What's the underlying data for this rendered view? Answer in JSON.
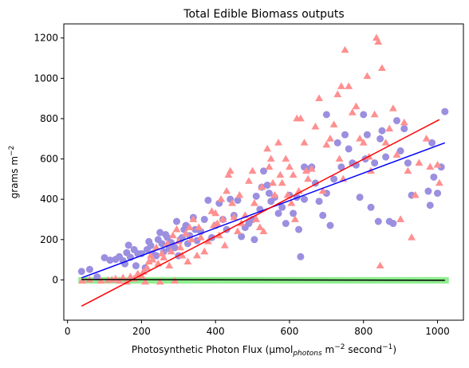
{
  "chart_data": {
    "type": "scatter",
    "title": "Total Edible Biomass outputs",
    "xlabel": {
      "prefix": "Photosynthetic Photon Flux (µmol",
      "sub": "photons",
      "mid": " m",
      "sup1": "−2",
      "mid2": " second",
      "sup2": "−1",
      "suffix": ")"
    },
    "ylabel": {
      "base": "grams m",
      "sup": "−2"
    },
    "xlim": [
      -10,
      1070
    ],
    "ylim": [
      -200,
      1270
    ],
    "xticks": [
      0,
      200,
      400,
      600,
      800,
      1000
    ],
    "yticks": [
      0,
      200,
      400,
      600,
      800,
      1000,
      1200
    ],
    "series": [
      {
        "marker": "circle",
        "color": "#9b8fe0",
        "points": [
          [
            38,
            42
          ],
          [
            60,
            52
          ],
          [
            80,
            15
          ],
          [
            100,
            110
          ],
          [
            115,
            98
          ],
          [
            130,
            102
          ],
          [
            140,
            115
          ],
          [
            150,
            95
          ],
          [
            155,
            80
          ],
          [
            160,
            135
          ],
          [
            165,
            172
          ],
          [
            170,
            112
          ],
          [
            180,
            150
          ],
          [
            185,
            70
          ],
          [
            190,
            130
          ],
          [
            200,
            130
          ],
          [
            210,
            60
          ],
          [
            215,
            150
          ],
          [
            220,
            190
          ],
          [
            225,
            170
          ],
          [
            230,
            130
          ],
          [
            240,
            120
          ],
          [
            245,
            200
          ],
          [
            250,
            235
          ],
          [
            255,
            180
          ],
          [
            260,
            140
          ],
          [
            265,
            225
          ],
          [
            270,
            210
          ],
          [
            275,
            155
          ],
          [
            280,
            185
          ],
          [
            290,
            160
          ],
          [
            295,
            290
          ],
          [
            300,
            120
          ],
          [
            305,
            200
          ],
          [
            310,
            210
          ],
          [
            315,
            250
          ],
          [
            320,
            270
          ],
          [
            325,
            180
          ],
          [
            330,
            220
          ],
          [
            340,
            310
          ],
          [
            345,
            250
          ],
          [
            350,
            195
          ],
          [
            360,
            240
          ],
          [
            370,
            300
          ],
          [
            380,
            395
          ],
          [
            390,
            210
          ],
          [
            400,
            270
          ],
          [
            410,
            380
          ],
          [
            420,
            300
          ],
          [
            430,
            250
          ],
          [
            440,
            400
          ],
          [
            450,
            320
          ],
          [
            460,
            395
          ],
          [
            470,
            215
          ],
          [
            480,
            260
          ],
          [
            490,
            280
          ],
          [
            500,
            300
          ],
          [
            505,
            200
          ],
          [
            510,
            415
          ],
          [
            520,
            350
          ],
          [
            525,
            460
          ],
          [
            530,
            540
          ],
          [
            540,
            470
          ],
          [
            545,
            430
          ],
          [
            550,
            390
          ],
          [
            560,
            410
          ],
          [
            570,
            330
          ],
          [
            580,
            360
          ],
          [
            590,
            280
          ],
          [
            600,
            420
          ],
          [
            610,
            330
          ],
          [
            620,
            410
          ],
          [
            625,
            250
          ],
          [
            630,
            115
          ],
          [
            640,
            400
          ],
          [
            650,
            550
          ],
          [
            660,
            560
          ],
          [
            670,
            480
          ],
          [
            680,
            390
          ],
          [
            690,
            320
          ],
          [
            700,
            430
          ],
          [
            710,
            270
          ],
          [
            720,
            500
          ],
          [
            730,
            680
          ],
          [
            740,
            560
          ],
          [
            750,
            720
          ],
          [
            760,
            650
          ],
          [
            770,
            580
          ],
          [
            780,
            570
          ],
          [
            790,
            410
          ],
          [
            800,
            820
          ],
          [
            805,
            600
          ],
          [
            810,
            720
          ],
          [
            820,
            360
          ],
          [
            830,
            580
          ],
          [
            840,
            290
          ],
          [
            845,
            700
          ],
          [
            850,
            740
          ],
          [
            860,
            610
          ],
          [
            870,
            290
          ],
          [
            880,
            280
          ],
          [
            890,
            790
          ],
          [
            900,
            640
          ],
          [
            910,
            750
          ],
          [
            920,
            580
          ],
          [
            930,
            420
          ],
          [
            980,
            370
          ],
          [
            985,
            680
          ],
          [
            990,
            510
          ],
          [
            1000,
            430
          ],
          [
            1020,
            835
          ],
          [
            1010,
            560
          ],
          [
            975,
            440
          ],
          [
            700,
            820
          ],
          [
            640,
            560
          ]
        ]
      },
      {
        "marker": "triangle",
        "color": "#ff9090",
        "points": [
          [
            40,
            -5
          ],
          [
            60,
            0
          ],
          [
            90,
            -5
          ],
          [
            110,
            -2
          ],
          [
            120,
            0
          ],
          [
            130,
            5
          ],
          [
            140,
            -5
          ],
          [
            150,
            10
          ],
          [
            160,
            -10
          ],
          [
            170,
            15
          ],
          [
            180,
            5
          ],
          [
            190,
            30
          ],
          [
            200,
            20
          ],
          [
            205,
            40
          ],
          [
            210,
            -10
          ],
          [
            215,
            60
          ],
          [
            220,
            90
          ],
          [
            225,
            120
          ],
          [
            230,
            100
          ],
          [
            240,
            160
          ],
          [
            245,
            80
          ],
          [
            250,
            -10
          ],
          [
            255,
            130
          ],
          [
            260,
            110
          ],
          [
            270,
            180
          ],
          [
            275,
            70
          ],
          [
            280,
            140
          ],
          [
            285,
            220
          ],
          [
            290,
            -5
          ],
          [
            295,
            250
          ],
          [
            300,
            190
          ],
          [
            305,
            160
          ],
          [
            310,
            120
          ],
          [
            320,
            230
          ],
          [
            325,
            90
          ],
          [
            330,
            260
          ],
          [
            335,
            200
          ],
          [
            340,
            300
          ],
          [
            350,
            120
          ],
          [
            355,
            260
          ],
          [
            360,
            210
          ],
          [
            370,
            140
          ],
          [
            380,
            190
          ],
          [
            390,
            340
          ],
          [
            395,
            270
          ],
          [
            400,
            330
          ],
          [
            405,
            280
          ],
          [
            410,
            220
          ],
          [
            415,
            400
          ],
          [
            420,
            300
          ],
          [
            425,
            170
          ],
          [
            430,
            440
          ],
          [
            435,
            520
          ],
          [
            440,
            540
          ],
          [
            445,
            380
          ],
          [
            450,
            310
          ],
          [
            460,
            240
          ],
          [
            465,
            420
          ],
          [
            470,
            280
          ],
          [
            480,
            320
          ],
          [
            490,
            490
          ],
          [
            500,
            540
          ],
          [
            505,
            380
          ],
          [
            510,
            300
          ],
          [
            520,
            260
          ],
          [
            525,
            460
          ],
          [
            530,
            240
          ],
          [
            540,
            650
          ],
          [
            545,
            560
          ],
          [
            550,
            600
          ],
          [
            555,
            480
          ],
          [
            560,
            420
          ],
          [
            570,
            680
          ],
          [
            575,
            520
          ],
          [
            580,
            480
          ],
          [
            590,
            600
          ],
          [
            595,
            420
          ],
          [
            600,
            560
          ],
          [
            605,
            380
          ],
          [
            610,
            520
          ],
          [
            615,
            300
          ],
          [
            620,
            800
          ],
          [
            625,
            440
          ],
          [
            630,
            800
          ],
          [
            640,
            680
          ],
          [
            645,
            540
          ],
          [
            650,
            500
          ],
          [
            660,
            550
          ],
          [
            670,
            760
          ],
          [
            680,
            900
          ],
          [
            690,
            440
          ],
          [
            700,
            670
          ],
          [
            710,
            700
          ],
          [
            720,
            770
          ],
          [
            730,
            920
          ],
          [
            735,
            600
          ],
          [
            740,
            960
          ],
          [
            745,
            500
          ],
          [
            750,
            1140
          ],
          [
            760,
            960
          ],
          [
            770,
            830
          ],
          [
            780,
            860
          ],
          [
            790,
            700
          ],
          [
            800,
            680
          ],
          [
            810,
            1010
          ],
          [
            815,
            610
          ],
          [
            820,
            540
          ],
          [
            830,
            820
          ],
          [
            835,
            1200
          ],
          [
            840,
            1180
          ],
          [
            845,
            70
          ],
          [
            850,
            1050
          ],
          [
            860,
            680
          ],
          [
            870,
            750
          ],
          [
            880,
            850
          ],
          [
            890,
            620
          ],
          [
            900,
            300
          ],
          [
            910,
            780
          ],
          [
            920,
            540
          ],
          [
            930,
            210
          ],
          [
            940,
            420
          ],
          [
            950,
            580
          ],
          [
            970,
            700
          ],
          [
            980,
            560
          ],
          [
            1000,
            570
          ],
          [
            1005,
            480
          ]
        ]
      },
      {
        "marker": "square",
        "color": "#90ee90",
        "x_range": [
          38,
          1025
        ],
        "y": -2
      }
    ],
    "fit_lines": [
      {
        "color": "#0000ff",
        "x": [
          38,
          1020
        ],
        "y": [
          10,
          680
        ]
      },
      {
        "color": "#ff0000",
        "x": [
          38,
          1005
        ],
        "y": [
          -130,
          795
        ]
      },
      {
        "color": "#000000",
        "x": [
          38,
          1020
        ],
        "y": [
          2,
          -2
        ]
      }
    ],
    "grid": false,
    "legend": "none"
  }
}
